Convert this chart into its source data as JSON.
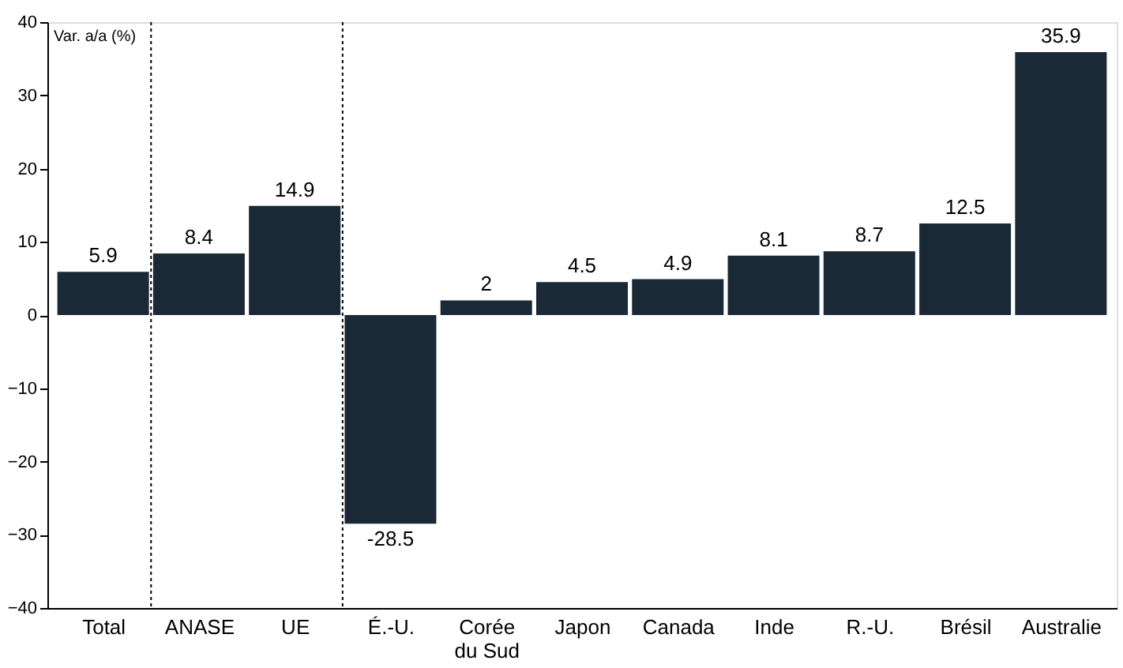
{
  "chart_data": {
    "type": "bar",
    "ylabel": "Var. a/a (%)",
    "categories": [
      "Total",
      "ANASE",
      "UE",
      "É.-U.",
      "Corée du Sud",
      "Japon",
      "Canada",
      "Inde",
      "R.-U.",
      "Brésil",
      "Australie"
    ],
    "values": [
      5.9,
      8.4,
      14.9,
      -28.5,
      2,
      4.5,
      4.9,
      8.1,
      8.7,
      12.5,
      35.9
    ],
    "color": "#1b2835",
    "ylim": [
      -40,
      40
    ],
    "yticks": [
      -40,
      -30,
      -20,
      -10,
      0,
      10,
      20,
      30,
      40
    ],
    "data_labels": true,
    "grid": false
  }
}
